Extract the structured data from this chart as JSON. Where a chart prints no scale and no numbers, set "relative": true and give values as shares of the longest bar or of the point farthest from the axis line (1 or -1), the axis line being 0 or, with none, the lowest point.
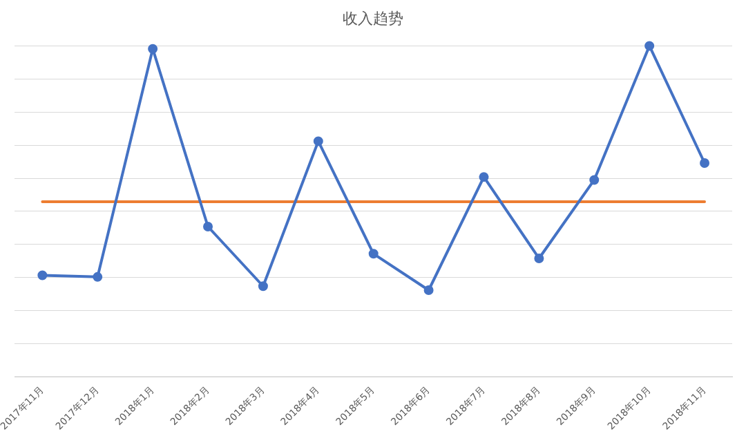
{
  "chart_data": {
    "type": "line",
    "title": "收入趋势",
    "relative": true,
    "grid": "y",
    "legend": false,
    "categories": [
      "2017年11月",
      "2017年12月",
      "2018年1月",
      "2018年2月",
      "2018年3月",
      "2018年4月",
      "2018年5月",
      "2018年6月",
      "2018年7月",
      "2018年8月",
      "2018年9月",
      "2018年10月",
      "2018年11月"
    ],
    "series": [
      {
        "color": "#4472c4",
        "marker": "circle",
        "values": [
          0.307,
          0.302,
          0.991,
          0.454,
          0.274,
          0.712,
          0.372,
          0.262,
          0.604,
          0.358,
          0.595,
          1,
          0.646
        ]
      },
      {
        "color": "#ed7d31",
        "marker": "none",
        "values": [
          0.529,
          0.529,
          0.529,
          0.529,
          0.529,
          0.529,
          0.529,
          0.529,
          0.529,
          0.529,
          0.529,
          0.529,
          0.529
        ]
      }
    ]
  }
}
